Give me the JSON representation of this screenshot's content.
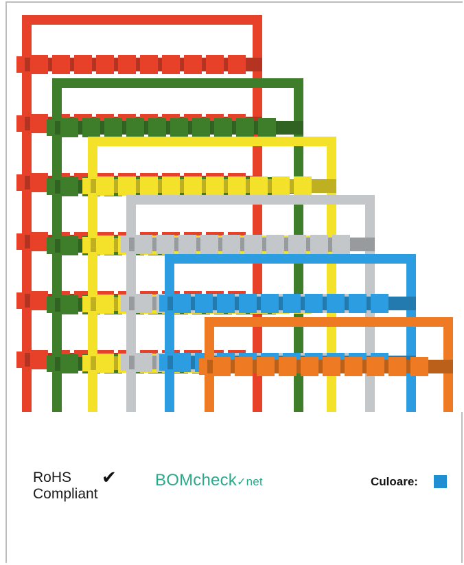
{
  "product": {
    "image_icon": "marker-frames-photo",
    "frame_colors": [
      "#e8412a",
      "#3e7d2a",
      "#f3e12a",
      "#c3c7c9",
      "#2b9de0",
      "#ee7b23"
    ]
  },
  "compliance": {
    "rohs_line1": "RoHS",
    "rohs_line2": "Compliant",
    "rohs_check": "✔",
    "bom_main": "BOMcheck",
    "bom_check": "✓",
    "bom_net": "net"
  },
  "color": {
    "label": "Culoare:",
    "swatch": "#1f8fd1"
  }
}
